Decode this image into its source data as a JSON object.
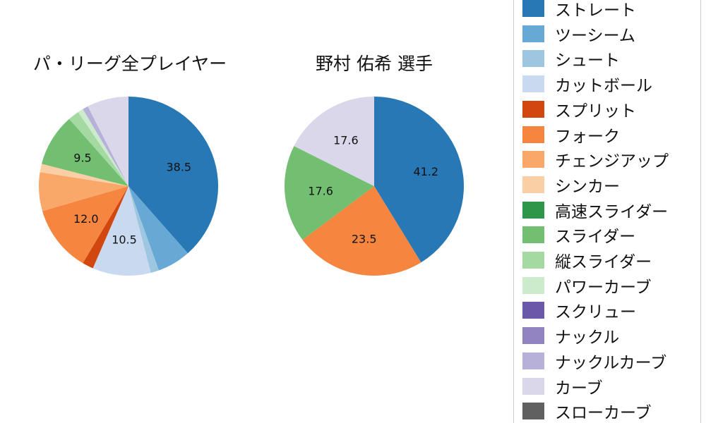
{
  "titles": {
    "left": "パ・リーグ全プレイヤー",
    "right": "野村 佑希 選手"
  },
  "legend": {
    "items": [
      {
        "label": "ストレート",
        "color": "#2878b5"
      },
      {
        "label": "ツーシーム",
        "color": "#68a8d4"
      },
      {
        "label": "シュート",
        "color": "#9dc6e0"
      },
      {
        "label": "カットボール",
        "color": "#c9d9f0"
      },
      {
        "label": "スプリット",
        "color": "#d2470f"
      },
      {
        "label": "フォーク",
        "color": "#f5853f"
      },
      {
        "label": "チェンジアップ",
        "color": "#f9a869"
      },
      {
        "label": "シンカー",
        "color": "#fbcfa5"
      },
      {
        "label": "高速スライダー",
        "color": "#2e9648"
      },
      {
        "label": "スライダー",
        "color": "#72bf72"
      },
      {
        "label": "縦スライダー",
        "color": "#a5d9a2"
      },
      {
        "label": "パワーカーブ",
        "color": "#cceacc"
      },
      {
        "label": "スクリュー",
        "color": "#6c58a8"
      },
      {
        "label": "ナックル",
        "color": "#9184c0"
      },
      {
        "label": "ナックルカーブ",
        "color": "#b7b0d8"
      },
      {
        "label": "カーブ",
        "color": "#d9d7e9"
      },
      {
        "label": "スローカーブ",
        "color": "#606060"
      }
    ]
  },
  "chart_data": [
    {
      "type": "pie",
      "title": "パ・リーグ全プレイヤー",
      "labels": [
        "ストレート",
        "ツーシーム",
        "シュート",
        "カットボール",
        "スプリット",
        "フォーク",
        "チェンジアップ",
        "シンカー",
        "スライダー",
        "縦スライダー",
        "パワーカーブ",
        "ナックルカーブ",
        "カーブ"
      ],
      "values": [
        38.5,
        6.0,
        1.5,
        10.5,
        2.0,
        12.0,
        7.0,
        1.5,
        9.5,
        2.0,
        1.0,
        1.0,
        7.5
      ],
      "colors": [
        "#2878b5",
        "#68a8d4",
        "#9dc6e0",
        "#c9d9f0",
        "#d2470f",
        "#f5853f",
        "#f9a869",
        "#fbcfa5",
        "#72bf72",
        "#a5d9a2",
        "#cceacc",
        "#b7b0d8",
        "#d9d7e9"
      ],
      "visible_value_labels": [
        "38.5",
        "10.5",
        "12.0",
        "9.5"
      ],
      "label_threshold": 9,
      "start_angle": "top",
      "direction": "clockwise",
      "legend_position": "right"
    },
    {
      "type": "pie",
      "title": "野村 佑希 選手",
      "labels": [
        "ストレート",
        "フォーク",
        "スライダー",
        "カーブ"
      ],
      "values": [
        41.2,
        23.5,
        17.6,
        17.6
      ],
      "colors": [
        "#2878b5",
        "#f5853f",
        "#72bf72",
        "#d9d7e9"
      ],
      "visible_value_labels": [
        "41.2",
        "23.5",
        "17.6",
        "17.6"
      ],
      "label_threshold": 9,
      "start_angle": "top",
      "direction": "clockwise",
      "legend_position": "right"
    }
  ]
}
